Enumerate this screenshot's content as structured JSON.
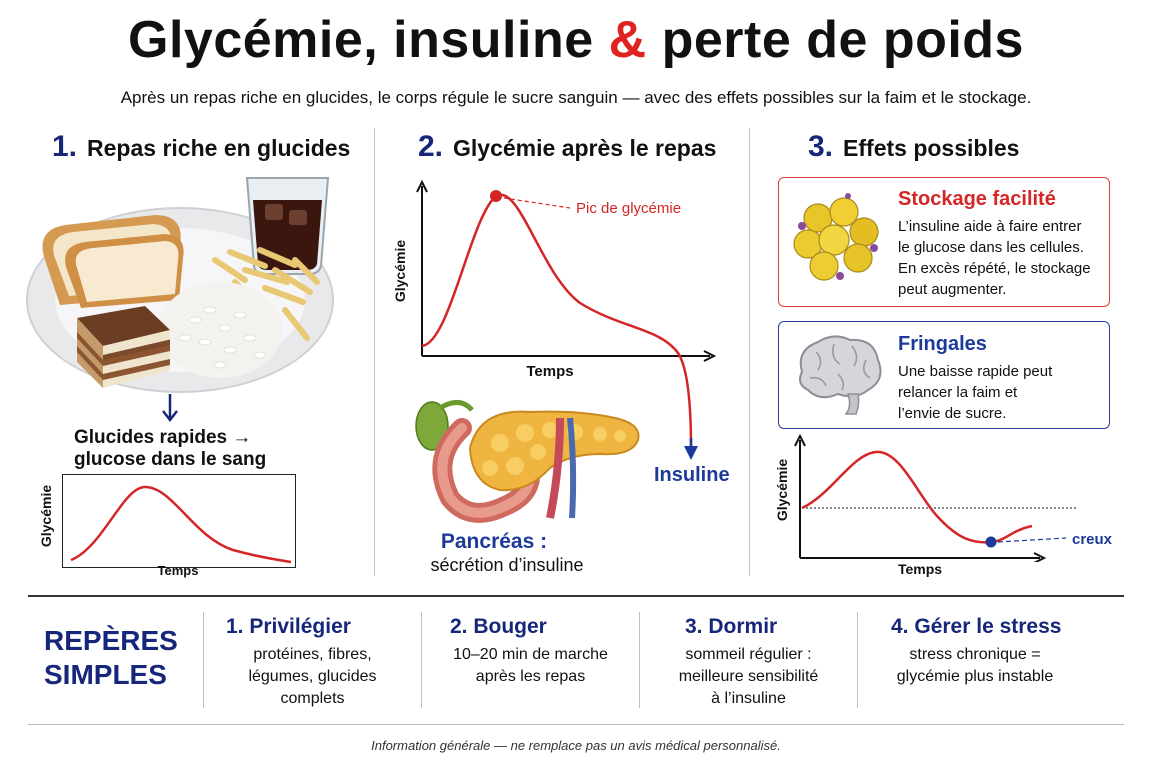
{
  "header": {
    "title_part1": "Glycémie, insuline ",
    "title_amp": "&",
    "title_part2": " perte de poids",
    "subtitle": "Après un repas riche en glucides, le corps régule le sucre sanguin — avec des effets possibles sur la faim et le stockage."
  },
  "col1": {
    "num": "1.",
    "title": "Repas riche en glucides",
    "caption_line1": "Glucides rapides →",
    "caption_line2": "glucose dans le sang",
    "chart": {
      "ylabel": "Glycémie",
      "xlabel": "Temps"
    }
  },
  "col2": {
    "num": "2.",
    "title": "Glycémie après le repas",
    "chart": {
      "ylabel": "Glycémie",
      "xlabel": "Temps",
      "peak_label": "Pic de glycémie"
    },
    "insulin_label": "Insuline",
    "pancreas_title": "Pancréas :",
    "pancreas_text": "sécrétion d’insuline"
  },
  "col3": {
    "num": "3.",
    "title": "Effets possibles",
    "box1": {
      "title": "Stockage facilité",
      "lines": [
        "L’insuline aide à faire entrer",
        "le glucose dans les cellules.",
        "En excès répété, le stockage",
        "peut augmenter."
      ]
    },
    "box2": {
      "title": "Fringales",
      "lines": [
        "Une baisse rapide peut",
        "relancer la faim et",
        "l’envie de sucre."
      ]
    },
    "chart": {
      "ylabel": "Glycémie",
      "xlabel": "Temps",
      "dip_label": "creux"
    }
  },
  "tips": {
    "heading_line1": "REPÈRES",
    "heading_line2": "SIMPLES",
    "items": [
      {
        "num": "1.",
        "title": "Privilégier",
        "lines": [
          "protéines, fibres,",
          "légumes, glucides",
          "complets"
        ]
      },
      {
        "num": "2.",
        "title": "Bouger",
        "lines": [
          "10–20 min de marche",
          "après les repas"
        ]
      },
      {
        "num": "3.",
        "title": "Dormir",
        "lines": [
          "sommeil régulier :",
          "meilleure sensibilité",
          "à l’insuline"
        ]
      },
      {
        "num": "4.",
        "title": "Gérer le stress",
        "lines": [
          "stress chronique =",
          "glycémie plus instable"
        ]
      }
    ]
  },
  "footer": "Information générale — ne remplace pas un avis médical personnalisé.",
  "colors": {
    "accent_red": "#e0231e",
    "navy": "#16267a",
    "curve_red": "#d42626",
    "blue_arrow": "#1d3a9a"
  },
  "icons": [
    "carb-meal-plate-illustration",
    "soda-glass-icon",
    "pancreas-illustration",
    "fat-cells-icon",
    "brain-icon",
    "down-arrow-icon"
  ]
}
